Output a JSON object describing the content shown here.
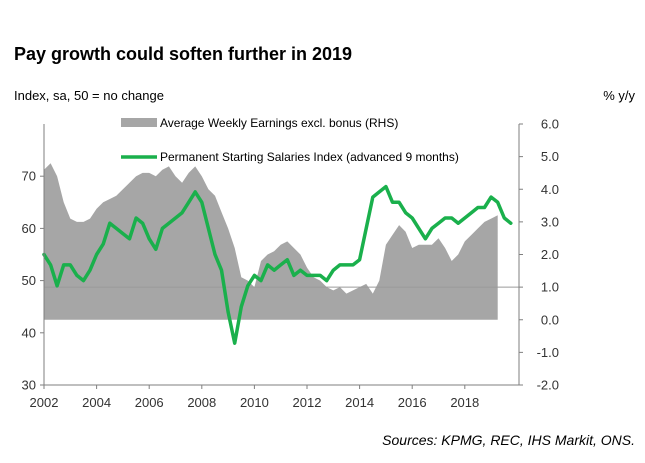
{
  "chart_data": {
    "type": "area+line",
    "title": "Pay growth could soften further in 2019",
    "left_axis_label": "Index, sa, 50 = no change",
    "right_axis_label": "% y/y",
    "source": "Sources: KPMG, REC, IHS Markit, ONS.",
    "x_ticks": [
      "2002",
      "2004",
      "2006",
      "2008",
      "2010",
      "2012",
      "2014",
      "2016",
      "2018"
    ],
    "x_range": [
      2002,
      2019.75
    ],
    "y_left": {
      "range": [
        30,
        80
      ],
      "ticks": [
        "30",
        "40",
        "50",
        "60",
        "70"
      ]
    },
    "y_right": {
      "range": [
        -2.0,
        6.0
      ],
      "ticks": [
        "-2.0",
        "-1.0",
        "0.0",
        "1.0",
        "2.0",
        "3.0",
        "4.0",
        "5.0",
        "6.0"
      ]
    },
    "series": [
      {
        "name": "Average Weekly Earnings excl. bonus (RHS)",
        "type": "area",
        "axis": "right",
        "color": "#a6a6a6",
        "x": [
          2002.0,
          2002.25,
          2002.5,
          2002.75,
          2003.0,
          2003.25,
          2003.5,
          2003.75,
          2004.0,
          2004.25,
          2004.5,
          2004.75,
          2005.0,
          2005.25,
          2005.5,
          2005.75,
          2006.0,
          2006.25,
          2006.5,
          2006.75,
          2007.0,
          2007.25,
          2007.5,
          2007.75,
          2008.0,
          2008.25,
          2008.5,
          2008.75,
          2009.0,
          2009.25,
          2009.5,
          2009.75,
          2010.0,
          2010.25,
          2010.5,
          2010.75,
          2011.0,
          2011.25,
          2011.5,
          2011.75,
          2012.0,
          2012.25,
          2012.5,
          2012.75,
          2013.0,
          2013.25,
          2013.5,
          2013.75,
          2014.0,
          2014.25,
          2014.5,
          2014.75,
          2015.0,
          2015.25,
          2015.5,
          2015.75,
          2016.0,
          2016.25,
          2016.5,
          2016.75,
          2017.0,
          2017.25,
          2017.5,
          2017.75,
          2018.0,
          2018.25,
          2018.5,
          2018.75,
          2019.0,
          2019.25
        ],
        "values": [
          4.6,
          4.8,
          4.4,
          3.6,
          3.1,
          3.0,
          3.0,
          3.1,
          3.4,
          3.6,
          3.7,
          3.8,
          4.0,
          4.2,
          4.4,
          4.5,
          4.5,
          4.4,
          4.6,
          4.7,
          4.4,
          4.2,
          4.5,
          4.7,
          4.4,
          4.0,
          3.8,
          3.3,
          2.8,
          2.2,
          1.3,
          1.2,
          1.0,
          1.8,
          2.0,
          2.1,
          2.3,
          2.4,
          2.2,
          2.0,
          1.6,
          1.3,
          1.2,
          1.0,
          0.9,
          1.0,
          0.8,
          0.9,
          1.0,
          1.1,
          0.8,
          1.2,
          2.3,
          2.6,
          2.9,
          2.7,
          2.2,
          2.3,
          2.3,
          2.3,
          2.5,
          2.2,
          1.8,
          2.0,
          2.4,
          2.6,
          2.8,
          3.0,
          3.1,
          3.2
        ]
      },
      {
        "name": "Permanent Starting Salaries Index (advanced 9 months)",
        "type": "line",
        "axis": "left",
        "color": "#1ab04c",
        "x": [
          2002.0,
          2002.25,
          2002.5,
          2002.75,
          2003.0,
          2003.25,
          2003.5,
          2003.75,
          2004.0,
          2004.25,
          2004.5,
          2004.75,
          2005.0,
          2005.25,
          2005.5,
          2005.75,
          2006.0,
          2006.25,
          2006.5,
          2006.75,
          2007.0,
          2007.25,
          2007.5,
          2007.75,
          2008.0,
          2008.25,
          2008.5,
          2008.75,
          2009.0,
          2009.25,
          2009.5,
          2009.75,
          2010.0,
          2010.25,
          2010.5,
          2010.75,
          2011.0,
          2011.25,
          2011.5,
          2011.75,
          2012.0,
          2012.25,
          2012.5,
          2012.75,
          2013.0,
          2013.25,
          2013.5,
          2013.75,
          2014.0,
          2014.25,
          2014.5,
          2014.75,
          2015.0,
          2015.25,
          2015.5,
          2015.75,
          2016.0,
          2016.25,
          2016.5,
          2016.75,
          2017.0,
          2017.25,
          2017.5,
          2017.75,
          2018.0,
          2018.25,
          2018.5,
          2018.75,
          2019.0,
          2019.25,
          2019.5,
          2019.75
        ],
        "values": [
          55,
          53,
          49,
          53,
          53,
          51,
          50,
          52,
          55,
          57,
          61,
          60,
          59,
          58,
          62,
          61,
          58,
          56,
          60,
          61,
          62,
          63,
          65,
          67,
          65,
          60,
          55,
          52,
          44,
          38,
          45,
          49,
          51,
          50,
          53,
          52,
          53,
          54,
          51,
          52,
          51,
          51,
          51,
          50,
          52,
          53,
          53,
          53,
          54,
          60,
          66,
          67,
          68,
          65,
          65,
          63,
          62,
          60,
          58,
          60,
          61,
          62,
          62,
          61,
          62,
          63,
          64,
          64,
          66,
          65,
          62,
          61
        ]
      }
    ]
  }
}
